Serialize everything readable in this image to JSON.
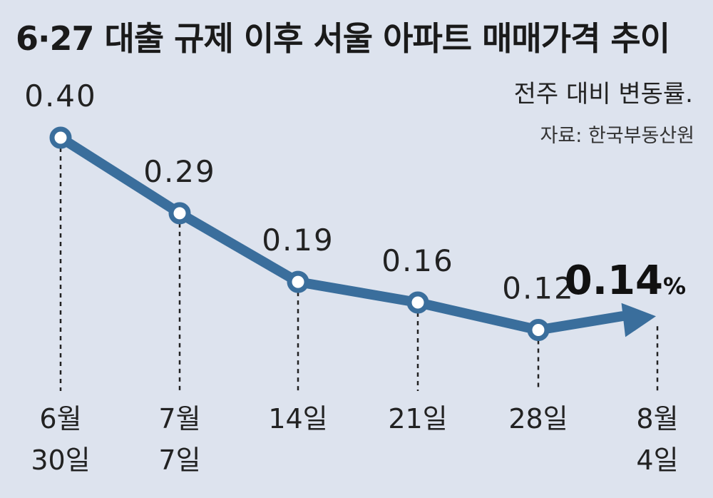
{
  "chart_data": {
    "type": "line",
    "title": "6·27 대출 규제 이후 서울 아파트 매매가격 추이",
    "subtitle": "전주 대비 변동률.",
    "source": "자료: 한국부동산원",
    "categories": [
      [
        "6월",
        "30일"
      ],
      [
        "7월",
        "7일"
      ],
      [
        "14일"
      ],
      [
        "21일"
      ],
      [
        "28일"
      ],
      [
        "8월",
        "4일"
      ]
    ],
    "values": [
      0.4,
      0.29,
      0.19,
      0.16,
      0.12,
      0.14
    ],
    "value_labels": [
      "0.40",
      "0.29",
      "0.19",
      "0.16",
      "0.12",
      "0.14"
    ],
    "last_value_unit": "%",
    "grid": false,
    "legend": "none"
  },
  "colors": {
    "background": "#dde3ee",
    "line": "#3a6e9c",
    "marker_fill": "#ffffff",
    "text": "#222222"
  }
}
